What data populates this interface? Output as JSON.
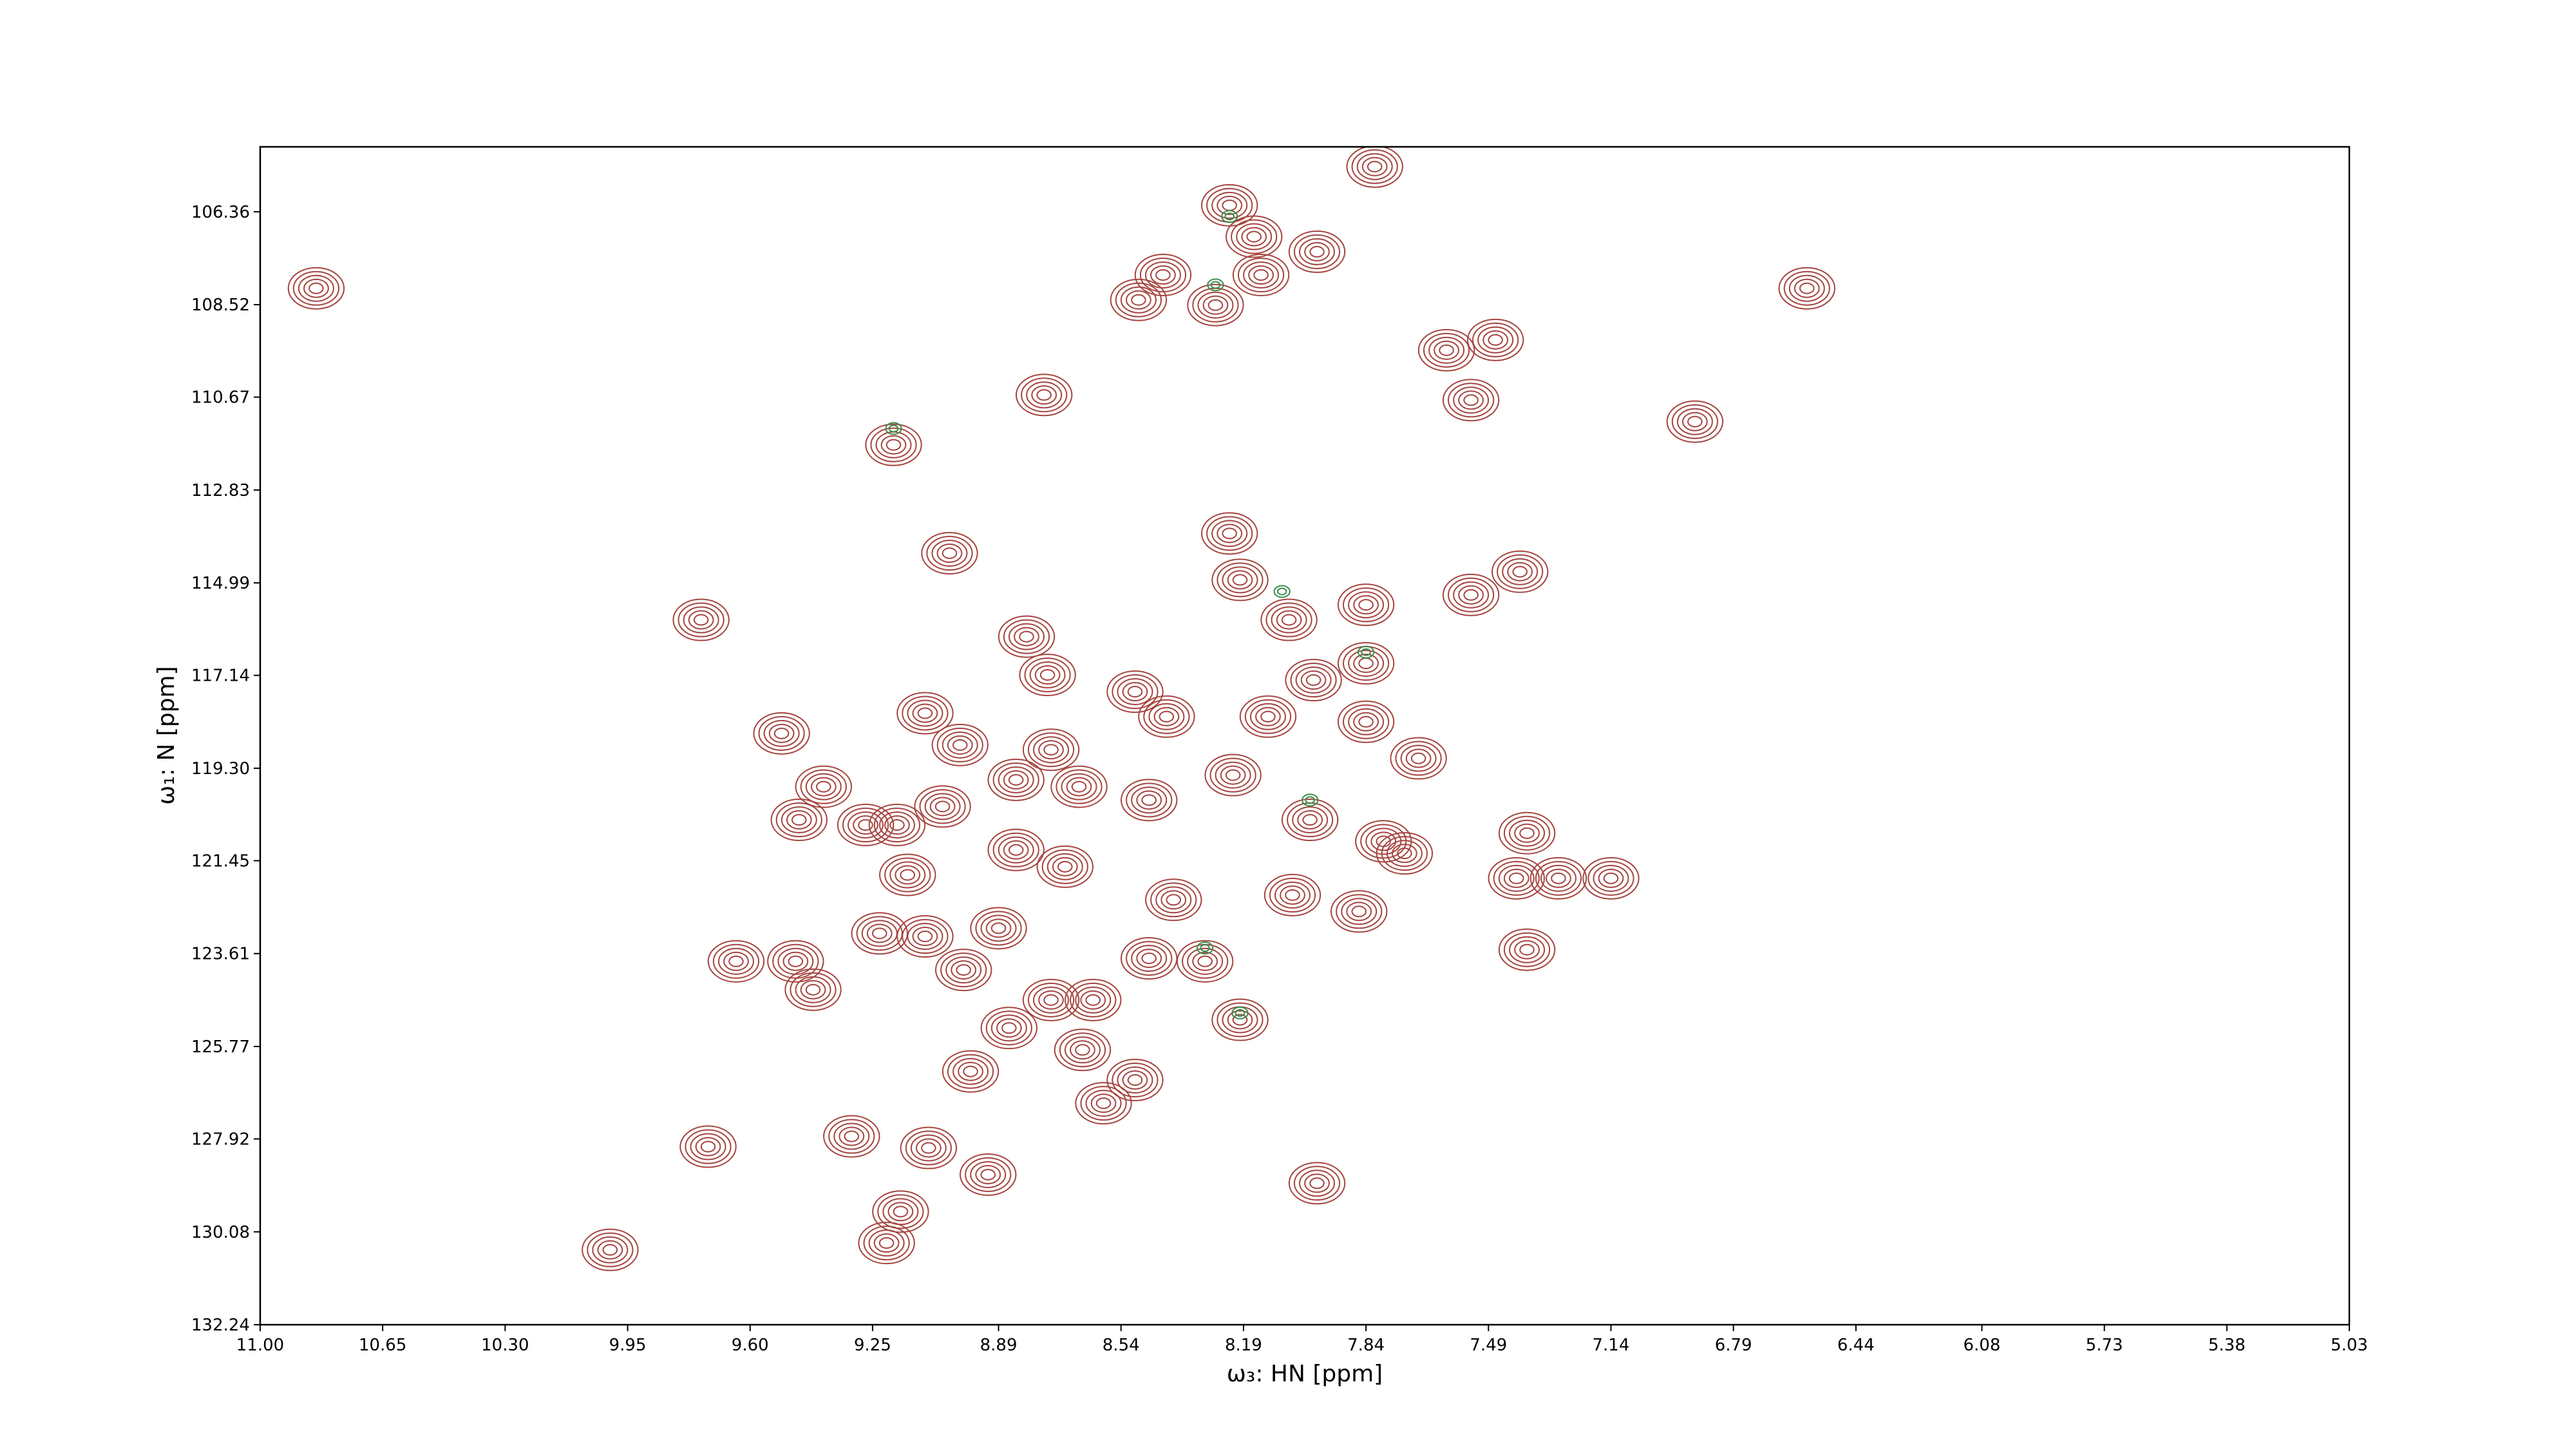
{
  "chart_data": {
    "type": "scatter",
    "x_label": "ω₃: HN [ppm]",
    "y_label": "ω₁: N [ppm]",
    "xlim": [
      11,
      5.03
    ],
    "ylim": [
      132.24,
      104.85
    ],
    "xticks": [
      {
        "value": 11,
        "label": "11.00"
      },
      10.65,
      {
        "value": 10.3,
        "label": "10.30"
      },
      9.95,
      {
        "value": 9.6,
        "label": "9.60"
      },
      9.25,
      8.89,
      8.54,
      8.19,
      7.84,
      7.49,
      7.14,
      6.79,
      6.44,
      6.08,
      5.73,
      5.38,
      5.03
    ],
    "yticks": [
      106.36,
      108.52,
      110.67,
      112.83,
      114.99,
      117.14,
      {
        "value": 119.3,
        "label": "119.30"
      },
      121.45,
      123.61,
      125.77,
      127.92,
      130.08,
      132.24
    ],
    "series": [
      {
        "color": "#a5453f",
        "x": [
          10.84,
          7.815,
          8.23,
          8.16,
          7.98,
          8.42,
          8.14,
          8.27,
          8.49,
          7.47,
          7.61,
          8.76,
          7.54,
          6.9,
          9.19,
          6.58,
          9.03,
          8.23,
          8.2,
          7.4,
          7.54,
          7.84,
          8.06,
          9.74,
          8.81,
          8.75,
          7.84,
          7.99,
          8.5,
          9.1,
          9.0,
          9.51,
          8.74,
          8.41,
          8.12,
          7.84,
          7.69,
          8.84,
          8.66,
          8.46,
          8.22,
          9.39,
          9.46,
          9.27,
          9.18,
          9.05,
          8.84,
          8.7,
          8.0,
          7.79,
          7.73,
          7.38,
          7.41,
          7.29,
          7.14,
          9.15,
          8.05,
          8.39,
          7.86,
          9.23,
          9.1,
          8.89,
          8.99,
          9.64,
          9.47,
          9.42,
          8.46,
          8.3,
          7.38,
          8.74,
          8.62,
          8.86,
          8.2,
          8.65,
          8.97,
          8.5,
          8.59,
          9.72,
          9.31,
          9.09,
          8.92,
          7.98,
          9.17,
          9.21,
          10.0
        ],
        "y": [
          108.14,
          105.31,
          106.21,
          106.94,
          107.29,
          107.83,
          107.83,
          108.53,
          108.41,
          109.34,
          109.58,
          110.62,
          110.74,
          111.24,
          111.78,
          108.14,
          114.3,
          113.84,
          114.92,
          114.73,
          115.27,
          115.5,
          115.85,
          115.85,
          116.24,
          117.13,
          116.86,
          117.25,
          117.52,
          118.02,
          118.76,
          118.49,
          118.87,
          118.1,
          118.1,
          118.22,
          119.07,
          119.57,
          119.73,
          120.04,
          119.46,
          119.73,
          120.5,
          120.62,
          120.62,
          120.19,
          121.2,
          121.59,
          120.5,
          121.0,
          121.28,
          120.81,
          121.86,
          121.86,
          121.86,
          121.78,
          122.25,
          122.36,
          122.63,
          123.14,
          123.21,
          123.02,
          123.99,
          123.79,
          123.79,
          124.45,
          123.72,
          123.79,
          123.52,
          124.69,
          124.69,
          125.34,
          125.15,
          125.85,
          126.35,
          126.55,
          127.09,
          128.1,
          127.86,
          128.13,
          128.75,
          128.95,
          129.61,
          130.34,
          130.5
        ]
      },
      {
        "color": "#3c8d4c",
        "x": [
          8.23,
          8.08,
          8.2,
          8.27,
          9.19,
          8.3,
          7.84,
          8.0
        ],
        "y": [
          106.47,
          115.19,
          124.99,
          108.06,
          111.4,
          123.48,
          116.6,
          120.04
        ]
      }
    ]
  }
}
